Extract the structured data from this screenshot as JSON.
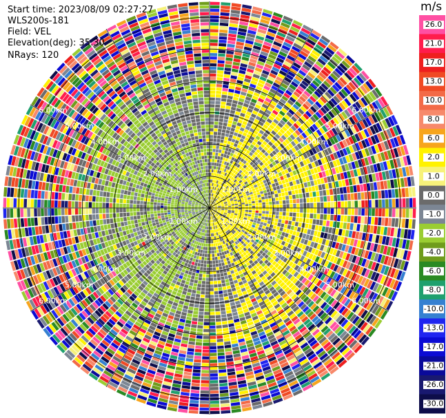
{
  "meta": {
    "start_time": "Start time: 2023/08/09 02:27:27",
    "instrument": "WLS200s-181",
    "field": "Field: VEL",
    "elevation": "Elevation(deg): 35.30",
    "nrays": "NRays: 120"
  },
  "chart_data": {
    "type": "heatmap",
    "subtype": "polar-ppi",
    "title": "",
    "field": "VEL",
    "units": "m/s",
    "nrays": 120,
    "elevation_deg": 35.3,
    "range_rings_km": [
      1.0,
      2.0,
      3.0,
      4.0,
      5.0,
      6.0
    ],
    "range_ring_labels": [
      "1.00km",
      "2.00km",
      "3.00km",
      "4.00km",
      "5.00km",
      "6.00km"
    ],
    "max_range_km": 6.5,
    "range_gates": 60,
    "colorbar": {
      "ticks": [
        26.0,
        21.0,
        17.0,
        13.0,
        10.0,
        8.0,
        6.0,
        2.0,
        1.0,
        0.0,
        -1.0,
        -2.0,
        -4.0,
        -6.0,
        -8.0,
        -10.0,
        -13.0,
        -17.0,
        -21.0,
        -26.0,
        -30.0
      ],
      "tick_labels": [
        "26.0",
        "21.0",
        "17.0",
        "13.0",
        "10.0",
        "8.0",
        "6.0",
        "2.0",
        "1.0",
        "0.0",
        "-1.0",
        "-2.0",
        "-4.0",
        "-6.0",
        "-8.0",
        "-10.0",
        "-13.0",
        "-17.0",
        "-21.0",
        "-26.0",
        "-30.0"
      ],
      "colors": [
        "#ff4fa3",
        "#ff1c4c",
        "#ee1f1f",
        "#f04a24",
        "#f36a47",
        "#f7896b",
        "#f7a51c",
        "#fff200",
        "#f7f27a",
        "#6b6b6b",
        "#7c8694",
        "#9acd32",
        "#6f9c1c",
        "#2a8a22",
        "#1fa06e",
        "#3580d1",
        "#1f25f0",
        "#0b0bd4",
        "#0a0a9a",
        "#191970",
        "#0d0d4a"
      ]
    },
    "dominant_pattern": {
      "near_range_west": "approx -2 m/s (green)",
      "near_range_east": "approx +2 m/s (yellow)",
      "far_range": "noise (all colors)"
    }
  }
}
